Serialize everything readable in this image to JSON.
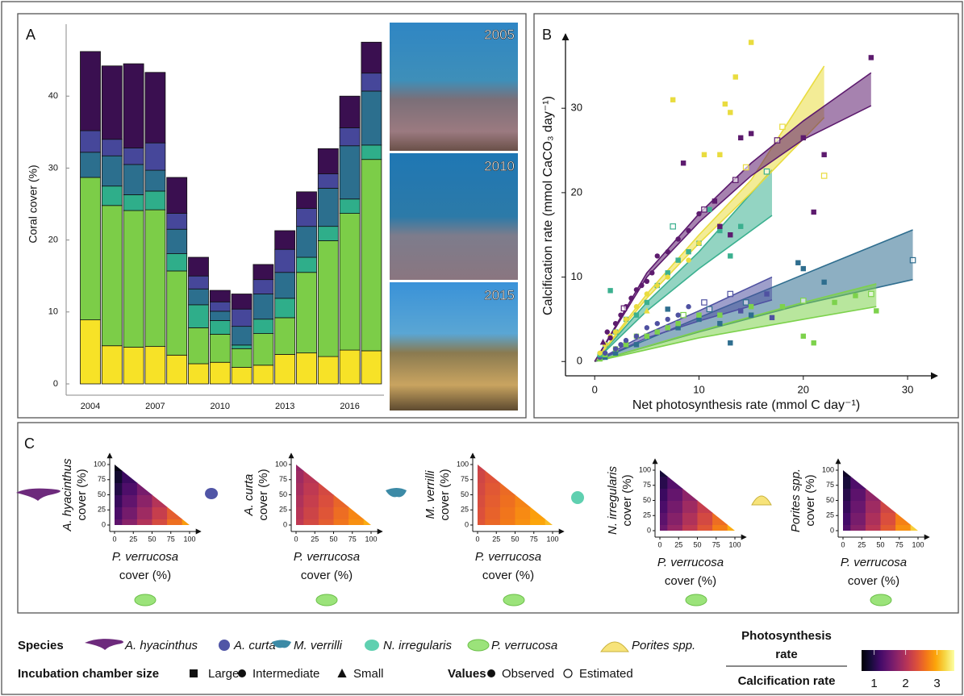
{
  "panels": [
    "A",
    "B",
    "C"
  ],
  "photos": [
    "2005",
    "2010",
    "2015"
  ],
  "chart_data": [
    {
      "type": "bar",
      "stacked": true,
      "ylabel": "Coral cover (%)",
      "categories": [
        "2004",
        null,
        null,
        "2007",
        null,
        null,
        "2010",
        null,
        null,
        "2013",
        null,
        null,
        "2016",
        null
      ],
      "ylim": [
        0,
        50
      ],
      "yticks": [
        0,
        10,
        20,
        30,
        40
      ],
      "series": [
        {
          "name": "Porites spp.",
          "color": "#f7e227",
          "values": [
            8.9,
            5.3,
            5.1,
            5.2,
            4.0,
            2.8,
            3.0,
            2.3,
            2.6,
            4.1,
            4.3,
            3.8,
            4.7,
            4.6
          ]
        },
        {
          "name": "P. verrucosa",
          "color": "#7ccd48",
          "values": [
            19.8,
            19.5,
            19.0,
            19.0,
            11.7,
            5.0,
            3.9,
            2.6,
            4.4,
            5.1,
            11.2,
            16.1,
            19.0,
            26.6
          ]
        },
        {
          "name": "N. irregularis",
          "color": "#2fae8a",
          "values": [
            0,
            2.7,
            2.2,
            2.6,
            2.4,
            3.2,
            1.9,
            0.5,
            2.0,
            2.7,
            2.1,
            2.0,
            2.0,
            2.0
          ]
        },
        {
          "name": "M. verrilli",
          "color": "#2c6f8e",
          "values": [
            3.5,
            4.2,
            4.2,
            2.9,
            3.4,
            2.2,
            1.3,
            2.6,
            3.5,
            3.6,
            4.3,
            5.3,
            7.4,
            7.5
          ]
        },
        {
          "name": "A. curta",
          "color": "#46479a",
          "values": [
            3.0,
            2.3,
            2.3,
            3.8,
            2.2,
            1.8,
            1.3,
            2.4,
            2.0,
            3.2,
            2.5,
            2.0,
            2.5,
            2.5
          ]
        },
        {
          "name": "A. hyacinthus",
          "color": "#3a0f50",
          "values": [
            11.0,
            10.2,
            11.7,
            9.8,
            5.0,
            2.6,
            1.6,
            2.1,
            2.1,
            2.6,
            2.3,
            3.5,
            4.4,
            4.3
          ]
        }
      ]
    },
    {
      "type": "scatter",
      "xlabel": "Net photosynthesis rate (mmol C day⁻¹)",
      "ylabel": "Calcification rate (mmol CaCO₃ day⁻¹)",
      "xlim": [
        -2.8,
        32.7
      ],
      "ylim": [
        -1.6,
        39
      ],
      "xticks": [
        0,
        10,
        20,
        30
      ],
      "yticks": [
        0,
        10,
        20,
        30
      ],
      "series": [
        {
          "name": "M. verrilli",
          "color": "#2f6e8f",
          "x": [
            1,
            2,
            3,
            4,
            5,
            6,
            8,
            10,
            12,
            13,
            15,
            19.5,
            20,
            30.5,
            11,
            14.5,
            7,
            22
          ],
          "y": [
            0.5,
            1,
            2,
            2,
            3,
            3.5,
            4,
            5,
            4.5,
            2.2,
            5.5,
            11.7,
            11,
            12,
            6.2,
            7,
            6.2,
            9.4
          ],
          "marker": [
            "square",
            "square",
            "square",
            "square",
            "square",
            "square",
            "square",
            "square",
            "square",
            "square",
            "square",
            "square",
            "square",
            "open-square",
            "open-square",
            "open-square",
            "square",
            "square"
          ],
          "fit_x": [
            0,
            10,
            20,
            30.5
          ],
          "fit_lower": [
            0,
            3.5,
            6.8,
            9.7
          ],
          "fit_upper": [
            0,
            5.2,
            10.3,
            15.6
          ]
        },
        {
          "name": "P. verrucosa",
          "color": "#7dd24c",
          "x": [
            0.5,
            1,
            2,
            3,
            4,
            5,
            6,
            7,
            8,
            10,
            12,
            15,
            18,
            20,
            21,
            23,
            25,
            27,
            20,
            8.5,
            26.5
          ],
          "y": [
            0.3,
            0.8,
            1.5,
            2,
            3,
            3,
            3.5,
            4,
            4.5,
            5.5,
            5.5,
            6.5,
            6.5,
            3,
            2.2,
            7,
            7.8,
            6,
            7.2,
            5.5,
            8
          ],
          "marker": [
            "square",
            "square",
            "square",
            "square",
            "square",
            "square",
            "square",
            "square",
            "square",
            "square",
            "square",
            "square",
            "square",
            "square",
            "square",
            "square",
            "square",
            "square",
            "open-square",
            "open-square",
            "open-square"
          ],
          "fit_x": [
            0,
            10,
            20,
            27
          ],
          "fit_lower": [
            0,
            2.8,
            5.0,
            6.5
          ],
          "fit_upper": [
            0,
            3.6,
            7.0,
            9.2
          ]
        },
        {
          "name": "A. curta",
          "color": "#4f51a1",
          "x": [
            0.5,
            1,
            2,
            2.5,
            3,
            4,
            5,
            6,
            7,
            8,
            9,
            10.5,
            13,
            14,
            16.5,
            17
          ],
          "y": [
            0.5,
            1,
            1.5,
            2,
            2.5,
            3,
            4,
            4.5,
            5,
            5.5,
            6.5,
            7,
            8,
            6,
            8,
            5.2
          ],
          "marker": [
            "circle",
            "circle",
            "circle",
            "circle",
            "circle",
            "circle",
            "circle",
            "circle",
            "circle",
            "circle",
            "circle",
            "open-square",
            "open-square",
            "square",
            "square",
            "square"
          ],
          "fit_x": [
            0,
            5,
            10,
            17
          ],
          "fit_lower": [
            0,
            2.8,
            4.8,
            7.3
          ],
          "fit_upper": [
            0,
            3.3,
            6,
            10
          ]
        },
        {
          "name": "N. irregularis",
          "color": "#3bb08f",
          "x": [
            0.5,
            1,
            2,
            3,
            4,
            5,
            6,
            7,
            8,
            9,
            10,
            12,
            13,
            14,
            16.5,
            7.5,
            1.5,
            11
          ],
          "y": [
            0.8,
            2,
            3.5,
            5,
            5.5,
            7,
            9,
            10.5,
            12,
            13,
            14,
            15.5,
            12.5,
            16,
            22.5,
            16,
            8.4,
            18
          ],
          "marker": [
            "square",
            "square",
            "square",
            "square",
            "square",
            "square",
            "square",
            "square",
            "square",
            "square",
            "square",
            "square",
            "square",
            "square",
            "open-square",
            "open-square",
            "square",
            "square"
          ],
          "fit_x": [
            0,
            5,
            10,
            17
          ],
          "fit_lower": [
            0,
            6,
            11,
            17.3
          ],
          "fit_upper": [
            0,
            7,
            13,
            22.7
          ]
        },
        {
          "name": "Porites spp.",
          "color": "#e9dc3f",
          "x": [
            0.5,
            1,
            1.5,
            2,
            3,
            4,
            5,
            6,
            7,
            9,
            10,
            12.5,
            13,
            13.5,
            15,
            7.5,
            10.5,
            12,
            18,
            22,
            14.5,
            5
          ],
          "y": [
            1,
            2,
            3,
            3.5,
            5,
            6.5,
            8,
            9,
            10,
            12,
            14,
            30.5,
            29.5,
            33.7,
            37.8,
            31,
            24.5,
            24.5,
            27.8,
            22,
            23,
            6
          ],
          "marker": [
            "circle",
            "circle",
            "circle",
            "circle",
            "circle",
            "circle",
            "circle",
            "circle",
            "circle",
            "circle",
            "circle",
            "square",
            "square",
            "square",
            "square",
            "square",
            "square",
            "square",
            "open-square",
            "open-square",
            "open-square",
            "triangle"
          ],
          "fit_x": [
            0,
            5,
            10,
            15,
            22
          ],
          "fit_lower": [
            0,
            7.5,
            14,
            20,
            28.9
          ],
          "fit_upper": [
            0,
            8,
            15,
            21.5,
            35
          ]
        },
        {
          "name": "A. hyacinthus",
          "color": "#5d1b6e",
          "x": [
            0.8,
            1.2,
            1.5,
            2,
            2.5,
            3,
            3.5,
            4,
            4.5,
            5,
            5.5,
            6,
            7,
            8,
            9,
            10,
            11.5,
            12,
            13,
            14,
            15,
            20,
            21,
            22,
            26.5,
            8.5,
            2.8,
            10.5,
            13.5,
            17.5
          ],
          "y": [
            2.3,
            3.5,
            2.8,
            4.5,
            5.5,
            6.5,
            7.5,
            8.5,
            9,
            9.5,
            10.5,
            12.5,
            13,
            14.5,
            15.5,
            17.5,
            19,
            16,
            15,
            26.5,
            27,
            26.5,
            17.7,
            24.5,
            36,
            23.5,
            6.3,
            18,
            21.5,
            26.2
          ],
          "marker": [
            "triangle",
            "circle",
            "circle",
            "circle",
            "circle",
            "circle",
            "circle",
            "circle",
            "circle",
            "circle",
            "circle",
            "circle",
            "circle",
            "circle",
            "circle",
            "circle",
            "square",
            "square",
            "square",
            "square",
            "square",
            "square",
            "square",
            "square",
            "square",
            "square",
            "open-square",
            "open-square",
            "open-square",
            "open-square"
          ],
          "fit_x": [
            0,
            5,
            10,
            15,
            20,
            26.5
          ],
          "fit_lower": [
            0,
            10,
            16.5,
            22,
            26.3,
            30.3
          ],
          "fit_upper": [
            0,
            10.5,
            17.5,
            23.5,
            28.5,
            34.2
          ]
        }
      ]
    },
    {
      "type": "heatmap",
      "shape": "triangle",
      "colormap": "inferno",
      "clim": [
        0.6,
        3.55
      ],
      "ylabel": [
        "A. hyacinthus",
        "cover (%)"
      ],
      "xlabel": [
        "P. verrucosa",
        "cover (%)"
      ],
      "xlim": [
        0,
        100
      ],
      "ylim": [
        0,
        100
      ],
      "xticks": [
        0,
        25,
        50,
        75,
        100
      ],
      "yticks": [
        0,
        25,
        50,
        75,
        100
      ],
      "values": [
        [
          1.4,
          1.7,
          2.0,
          2.3,
          2.6,
          2.9
        ],
        [
          1.26,
          1.56,
          1.86,
          2.16,
          2.46
        ],
        [
          1.12,
          1.42,
          1.72,
          2.02
        ],
        [
          0.98,
          1.28,
          1.58
        ],
        [
          0.84,
          1.14
        ],
        [
          0.7
        ]
      ]
    },
    {
      "type": "heatmap",
      "shape": "triangle",
      "colormap": "inferno",
      "clim": [
        0.6,
        3.55
      ],
      "ylabel": [
        "A. curta",
        "cover (%)"
      ],
      "xlabel": [
        "P. verrucosa",
        "cover (%)"
      ],
      "xlim": [
        0,
        100
      ],
      "ylim": [
        0,
        100
      ],
      "xticks": [
        0,
        25,
        50,
        75,
        100
      ],
      "yticks": [
        0,
        25,
        50,
        75,
        100
      ],
      "values": [
        [
          2.1,
          2.28,
          2.46,
          2.64,
          2.82,
          3.0
        ],
        [
          2.04,
          2.22,
          2.4,
          2.58,
          2.76
        ],
        [
          1.98,
          2.16,
          2.34,
          2.52
        ],
        [
          1.92,
          2.1,
          2.28
        ],
        [
          1.86,
          2.04
        ],
        [
          1.8
        ]
      ]
    },
    {
      "type": "heatmap",
      "shape": "triangle",
      "colormap": "inferno",
      "clim": [
        0.6,
        3.55
      ],
      "ylabel": [
        "M. verrilli",
        "cover (%)"
      ],
      "xlabel": [
        "P. verrucosa",
        "cover (%)"
      ],
      "xlim": [
        0,
        100
      ],
      "ylim": [
        0,
        100
      ],
      "xticks": [
        0,
        25,
        50,
        75,
        100
      ],
      "yticks": [
        0,
        25,
        50,
        75,
        100
      ],
      "values": [
        [
          2.4,
          2.54,
          2.68,
          2.82,
          2.96,
          3.1
        ],
        [
          2.36,
          2.5,
          2.64,
          2.78,
          2.92
        ],
        [
          2.32,
          2.46,
          2.6,
          2.74
        ],
        [
          2.28,
          2.42,
          2.56
        ],
        [
          2.24,
          2.38
        ],
        [
          2.2
        ]
      ]
    },
    {
      "type": "heatmap",
      "shape": "triangle",
      "colormap": "inferno",
      "clim": [
        0.6,
        3.55
      ],
      "ylabel": [
        "N. irregularis",
        "cover (%)"
      ],
      "xlabel": [
        "P. verrucosa",
        "cover (%)"
      ],
      "xlim": [
        0,
        100
      ],
      "ylim": [
        0,
        100
      ],
      "xticks": [
        0,
        25,
        50,
        75,
        100
      ],
      "yticks": [
        0,
        25,
        50,
        75,
        100
      ],
      "values": [
        [
          1.5,
          1.8,
          2.1,
          2.4,
          2.7,
          3.0
        ],
        [
          1.38,
          1.68,
          1.98,
          2.28,
          2.58
        ],
        [
          1.26,
          1.56,
          1.86,
          2.16
        ],
        [
          1.14,
          1.44,
          1.74
        ],
        [
          1.02,
          1.32
        ],
        [
          0.9
        ]
      ]
    },
    {
      "type": "heatmap",
      "shape": "triangle",
      "colormap": "inferno",
      "clim": [
        0.6,
        3.55
      ],
      "ylabel": [
        "Porites spp.",
        "cover (%)"
      ],
      "xlabel": [
        "P. verrucosa",
        "cover (%)"
      ],
      "xlim": [
        0,
        100
      ],
      "ylim": [
        0,
        100
      ],
      "xticks": [
        0,
        25,
        50,
        75,
        100
      ],
      "yticks": [
        0,
        25,
        50,
        75,
        100
      ],
      "values": [
        [
          1.3,
          1.68,
          2.06,
          2.44,
          2.82,
          3.2
        ],
        [
          1.2,
          1.58,
          1.96,
          2.34,
          2.72
        ],
        [
          1.1,
          1.48,
          1.86,
          2.24
        ],
        [
          1.0,
          1.38,
          1.76
        ],
        [
          0.9,
          1.28
        ],
        [
          0.8
        ]
      ]
    }
  ],
  "legend": {
    "species_title": "Species",
    "chamber": {
      "title": "Incubation chamber size",
      "items": [
        {
          "label": "Large",
          "marker": "square"
        },
        {
          "label": "Intermediate",
          "marker": "circle"
        },
        {
          "label": "Small",
          "marker": "triangle"
        }
      ]
    },
    "values": {
      "title": "Values",
      "items": [
        {
          "label": "Observed",
          "marker": "circle"
        },
        {
          "label": "Estimated",
          "marker": "open-circle"
        }
      ]
    },
    "colorbar": {
      "numerator": [
        "Photosynthesis",
        "rate"
      ],
      "denominator": "Calcification rate",
      "colormap": "inferno",
      "clim": [
        0.6,
        3.55
      ],
      "ticks": [
        1,
        2,
        3
      ]
    }
  }
}
